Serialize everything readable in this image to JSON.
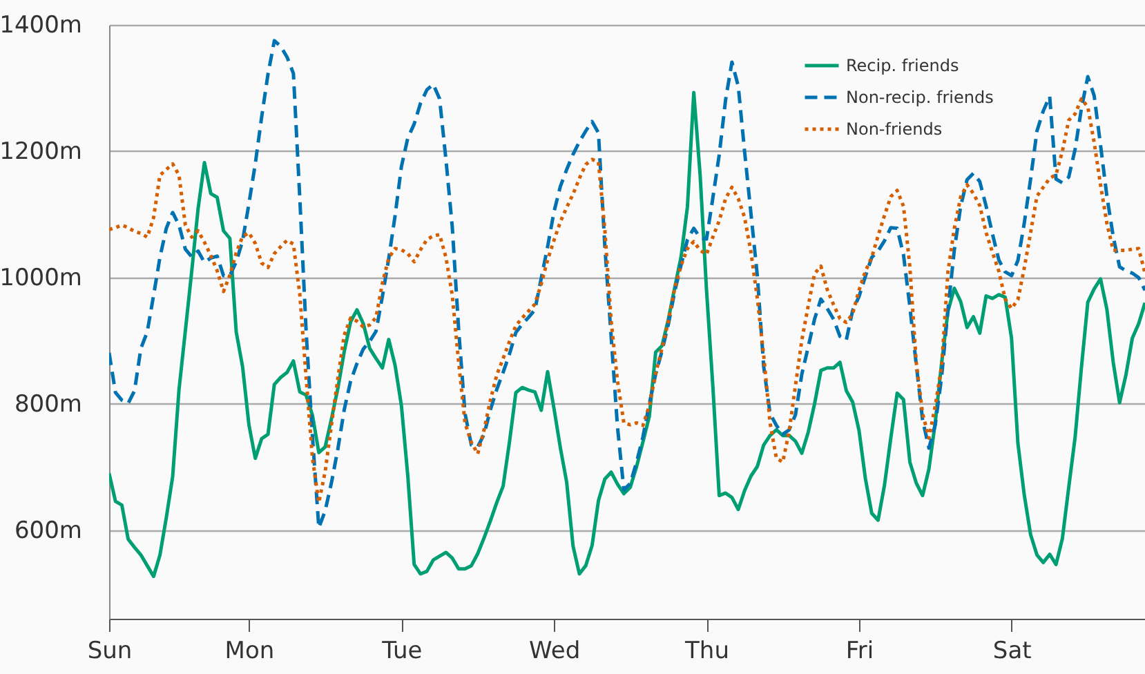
{
  "chart_data": {
    "type": "line",
    "ylim": [
      460,
      1400
    ],
    "categories": [
      "Sun",
      null,
      null,
      null,
      null,
      null,
      null,
      null,
      null,
      null,
      null,
      null,
      null,
      null,
      null,
      null,
      null,
      null,
      null,
      null,
      null,
      null,
      "Mon",
      null,
      null,
      null,
      null,
      null,
      null,
      null,
      null,
      null,
      null,
      null,
      null,
      null,
      null,
      null,
      null,
      null,
      null,
      null,
      null,
      null,
      null,
      null,
      "Tue",
      null,
      null,
      null,
      null,
      null,
      null,
      null,
      null,
      null,
      null,
      null,
      null,
      null,
      null,
      null,
      null,
      null,
      null,
      null,
      null,
      null,
      null,
      null,
      "Wed",
      null,
      null,
      null,
      null,
      null,
      null,
      null,
      null,
      null,
      null,
      null,
      null,
      null,
      null,
      null,
      null,
      null,
      null,
      null,
      null,
      null,
      null,
      null,
      "Thu",
      null,
      null,
      null,
      null,
      null,
      null,
      null,
      null,
      null,
      null,
      null,
      null,
      null,
      null,
      null,
      null,
      null,
      null,
      null,
      null,
      null,
      null,
      null,
      "Fri",
      null,
      null,
      null,
      null,
      null,
      null,
      null,
      null,
      null,
      null,
      null,
      null,
      null,
      null,
      null,
      null,
      null,
      null,
      null,
      null,
      null,
      null,
      null,
      "Sat",
      null,
      null,
      null,
      null,
      null,
      null,
      null,
      null,
      null,
      null,
      null,
      null,
      null,
      null,
      null,
      null,
      null,
      null,
      null,
      null,
      null
    ],
    "yticks": [
      {
        "value": 600,
        "label": "600m"
      },
      {
        "value": 800,
        "label": "800m"
      },
      {
        "value": 1000,
        "label": "1000m"
      },
      {
        "value": 1200,
        "label": "1200m"
      },
      {
        "value": 1400,
        "label": "1400m"
      }
    ],
    "grid": "y",
    "legend": "top right",
    "series": [
      {
        "name": "Recip. friends",
        "color": "#009e73",
        "line_style": "solid",
        "values": [
          690,
          646,
          640,
          586,
          573,
          561,
          544,
          527,
          561,
          620,
          685,
          823,
          916,
          1010,
          1109,
          1182,
          1133,
          1127,
          1074,
          1062,
          914,
          859,
          767,
          714,
          745,
          752,
          831,
          842,
          850,
          868,
          819,
          814,
          782,
          723,
          732,
          777,
          825,
          883,
          930,
          949,
          927,
          888,
          872,
          857,
          902,
          861,
          797,
          686,
          546,
          531,
          535,
          553,
          559,
          565,
          556,
          539,
          539,
          544,
          563,
          588,
          615,
          644,
          670,
          740,
          818,
          826,
          822,
          819,
          790,
          851,
          793,
          731,
          676,
          575,
          531,
          544,
          576,
          647,
          681,
          692,
          673,
          658,
          668,
          701,
          740,
          780,
          882,
          892,
          934,
          984,
          1033,
          1112,
          1293,
          1162,
          981,
          828,
          655,
          659,
          652,
          633,
          663,
          686,
          701,
          735,
          750,
          759,
          750,
          750,
          741,
          722,
          755,
          800,
          853,
          857,
          857,
          866,
          821,
          803,
          758,
          682,
          627,
          616,
          671,
          746,
          817,
          807,
          708,
          675,
          655,
          697,
          771,
          865,
          947,
          983,
          962,
          921,
          938,
          912,
          971,
          967,
          973,
          969,
          904,
          738,
          656,
          593,
          561,
          549,
          562,
          546,
          587,
          668,
          747,
          858,
          961,
          982,
          998,
          950,
          866,
          802,
          846,
          904,
          927,
          960
        ]
      },
      {
        "name": "Non-recip. friends",
        "color": "#0072b2",
        "line_style": "dashed",
        "values": [
          881,
          818,
          806,
          801,
          821,
          888,
          914,
          972,
          1032,
          1078,
          1103,
          1083,
          1045,
          1033,
          1042,
          1024,
          1031,
          1034,
          1003,
          1003,
          1025,
          1058,
          1117,
          1180,
          1254,
          1322,
          1375,
          1366,
          1349,
          1323,
          1127,
          915,
          748,
          604,
          631,
          676,
          729,
          791,
          836,
          864,
          887,
          899,
          915,
          970,
          1030,
          1098,
          1176,
          1221,
          1243,
          1276,
          1297,
          1306,
          1283,
          1187,
          1080,
          918,
          785,
          735,
          732,
          752,
          791,
          823,
          850,
          879,
          913,
          926,
          937,
          949,
          999,
          1049,
          1104,
          1144,
          1171,
          1195,
          1215,
          1232,
          1247,
          1229,
          1050,
          906,
          763,
          664,
          674,
          708,
          748,
          800,
          847,
          884,
          926,
          978,
          1020,
          1060,
          1078,
          1063,
          1061,
          1126,
          1194,
          1281,
          1341,
          1303,
          1199,
          1101,
          1003,
          859,
          785,
          766,
          752,
          759,
          783,
          847,
          890,
          934,
          966,
          951,
          934,
          907,
          901,
          948,
          970,
          1002,
          1032,
          1042,
          1058,
          1079,
          1078,
          1036,
          954,
          863,
          775,
          730,
          767,
          843,
          950,
          1044,
          1113,
          1155,
          1165,
          1152,
          1113,
          1069,
          1028,
          1009,
          1003,
          1027,
          1086,
          1156,
          1232,
          1264,
          1287,
          1156,
          1150,
          1159,
          1203,
          1268,
          1318,
          1288,
          1210,
          1129,
          1065,
          1017,
          1011,
          1007,
          1000,
          980
        ]
      },
      {
        "name": "Non-friends",
        "color": "#d55e00",
        "line_style": "dotted",
        "values": [
          1076,
          1079,
          1083,
          1079,
          1073,
          1070,
          1064,
          1095,
          1162,
          1171,
          1180,
          1162,
          1083,
          1064,
          1074,
          1056,
          1035,
          1011,
          978,
          1004,
          1039,
          1065,
          1071,
          1054,
          1023,
          1016,
          1038,
          1049,
          1059,
          1053,
          974,
          842,
          714,
          644,
          693,
          768,
          841,
          909,
          936,
          931,
          922,
          925,
          937,
          991,
          1031,
          1046,
          1044,
          1038,
          1025,
          1044,
          1060,
          1066,
          1068,
          1032,
          972,
          866,
          770,
          739,
          721,
          759,
          806,
          846,
          872,
          899,
          924,
          936,
          947,
          958,
          990,
          1028,
          1059,
          1088,
          1111,
          1132,
          1157,
          1179,
          1187,
          1183,
          1076,
          931,
          836,
          770,
          767,
          770,
          766,
          797,
          848,
          888,
          931,
          983,
          1019,
          1046,
          1057,
          1043,
          1037,
          1064,
          1090,
          1125,
          1143,
          1125,
          1095,
          1040,
          967,
          877,
          770,
          714,
          708,
          756,
          829,
          901,
          955,
          1006,
          1018,
          981,
          957,
          935,
          929,
          943,
          980,
          1010,
          1032,
          1066,
          1098,
          1128,
          1138,
          1113,
          1017,
          866,
          785,
          746,
          797,
          860,
          1010,
          1078,
          1128,
          1147,
          1133,
          1114,
          1071,
          1040,
          1010,
          966,
          951,
          965,
          1015,
          1071,
          1129,
          1143,
          1157,
          1163,
          1200,
          1249,
          1259,
          1283,
          1270,
          1214,
          1147,
          1086,
          1043,
          1043,
          1043,
          1045,
          1046,
          1007
        ]
      }
    ]
  }
}
